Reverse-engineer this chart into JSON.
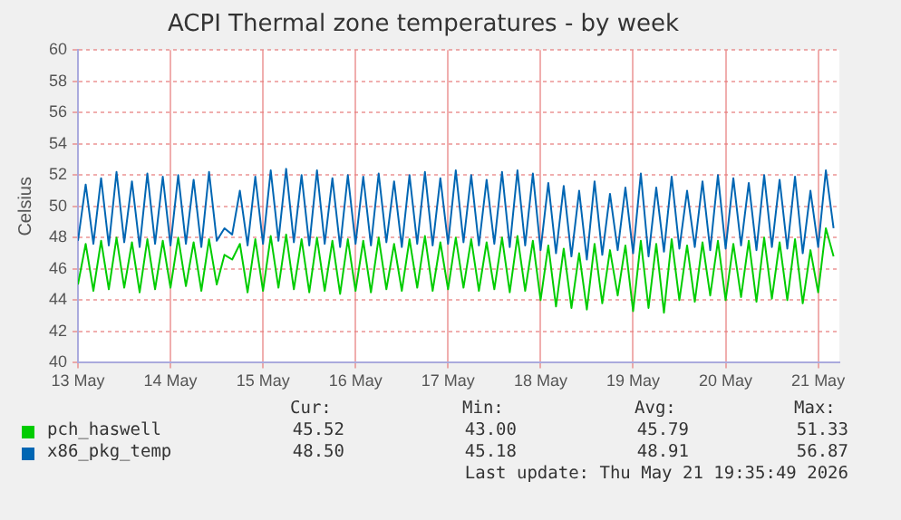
{
  "chart_data": {
    "type": "line",
    "title": "ACPI Thermal zone temperatures - by week",
    "ylabel": "Celsius",
    "x": [
      "2026-05-13T00:00",
      "2026-05-13T02:00",
      "2026-05-13T04:00",
      "2026-05-13T06:00",
      "2026-05-13T08:00",
      "2026-05-13T10:00",
      "2026-05-13T12:00",
      "2026-05-13T14:00",
      "2026-05-13T16:00",
      "2026-05-13T18:00",
      "2026-05-13T20:00",
      "2026-05-13T22:00",
      "2026-05-14T00:00",
      "2026-05-14T02:00",
      "2026-05-14T04:00",
      "2026-05-14T06:00",
      "2026-05-14T08:00",
      "2026-05-14T10:00",
      "2026-05-14T12:00",
      "2026-05-14T14:00",
      "2026-05-14T16:00",
      "2026-05-14T18:00",
      "2026-05-14T20:00",
      "2026-05-14T22:00",
      "2026-05-15T00:00",
      "2026-05-15T02:00",
      "2026-05-15T04:00",
      "2026-05-15T06:00",
      "2026-05-15T08:00",
      "2026-05-15T10:00",
      "2026-05-15T12:00",
      "2026-05-15T14:00",
      "2026-05-15T16:00",
      "2026-05-15T18:00",
      "2026-05-15T20:00",
      "2026-05-15T22:00",
      "2026-05-16T00:00",
      "2026-05-16T02:00",
      "2026-05-16T04:00",
      "2026-05-16T06:00",
      "2026-05-16T08:00",
      "2026-05-16T10:00",
      "2026-05-16T12:00",
      "2026-05-16T14:00",
      "2026-05-16T16:00",
      "2026-05-16T18:00",
      "2026-05-16T20:00",
      "2026-05-16T22:00",
      "2026-05-17T00:00",
      "2026-05-17T02:00",
      "2026-05-17T04:00",
      "2026-05-17T06:00",
      "2026-05-17T08:00",
      "2026-05-17T10:00",
      "2026-05-17T12:00",
      "2026-05-17T14:00",
      "2026-05-17T16:00",
      "2026-05-17T18:00",
      "2026-05-17T20:00",
      "2026-05-17T22:00",
      "2026-05-18T00:00",
      "2026-05-18T02:00",
      "2026-05-18T04:00",
      "2026-05-18T06:00",
      "2026-05-18T08:00",
      "2026-05-18T10:00",
      "2026-05-18T12:00",
      "2026-05-18T14:00",
      "2026-05-18T16:00",
      "2026-05-18T18:00",
      "2026-05-18T20:00",
      "2026-05-18T22:00",
      "2026-05-19T00:00",
      "2026-05-19T02:00",
      "2026-05-19T04:00",
      "2026-05-19T06:00",
      "2026-05-19T08:00",
      "2026-05-19T10:00",
      "2026-05-19T12:00",
      "2026-05-19T14:00",
      "2026-05-19T16:00",
      "2026-05-19T18:00",
      "2026-05-19T20:00",
      "2026-05-19T22:00",
      "2026-05-20T00:00",
      "2026-05-20T02:00",
      "2026-05-20T04:00",
      "2026-05-20T06:00",
      "2026-05-20T08:00",
      "2026-05-20T10:00",
      "2026-05-20T12:00",
      "2026-05-20T14:00",
      "2026-05-20T16:00",
      "2026-05-20T18:00",
      "2026-05-20T20:00",
      "2026-05-20T22:00",
      "2026-05-21T00:00",
      "2026-05-21T02:00",
      "2026-05-21T04:00"
    ],
    "series": [
      {
        "name": "pch_haswell",
        "color": "#00cc00",
        "values": [
          45.0,
          47.6,
          44.6,
          47.8,
          44.7,
          48.0,
          44.8,
          47.7,
          44.5,
          47.9,
          44.7,
          47.8,
          44.8,
          48.0,
          44.9,
          47.7,
          44.6,
          47.9,
          45.0,
          46.9,
          46.6,
          47.6,
          44.5,
          47.9,
          44.6,
          48.1,
          44.8,
          48.2,
          44.7,
          47.9,
          44.5,
          48.0,
          44.6,
          47.8,
          44.4,
          47.9,
          44.6,
          47.8,
          44.5,
          48.0,
          44.7,
          47.6,
          44.6,
          47.9,
          44.8,
          48.1,
          44.6,
          47.7,
          44.7,
          48.0,
          44.8,
          47.9,
          44.6,
          47.7,
          44.7,
          48.0,
          44.5,
          48.1,
          44.6,
          47.8,
          44.0,
          47.5,
          43.6,
          47.3,
          43.5,
          47.0,
          43.4,
          47.6,
          43.8,
          47.2,
          44.3,
          47.5,
          43.3,
          47.8,
          43.5,
          47.6,
          43.2,
          47.9,
          44.0,
          47.5,
          43.9,
          47.7,
          44.3,
          47.8,
          44.0,
          47.6,
          44.2,
          47.8,
          43.9,
          48.0,
          44.1,
          47.7,
          44.0,
          47.9,
          43.8,
          47.2,
          44.5,
          48.6,
          46.8
        ]
      },
      {
        "name": "x86_pkg_temp",
        "color": "#0066b3",
        "values": [
          47.8,
          51.4,
          47.6,
          51.8,
          47.5,
          52.2,
          47.7,
          51.6,
          47.4,
          52.1,
          47.6,
          51.9,
          47.5,
          52.0,
          47.6,
          51.7,
          47.4,
          52.2,
          47.8,
          48.6,
          48.2,
          51.0,
          47.5,
          51.9,
          47.6,
          52.3,
          47.8,
          52.4,
          47.7,
          52.0,
          47.5,
          52.3,
          47.6,
          51.8,
          47.4,
          52.0,
          47.6,
          51.9,
          47.5,
          52.1,
          47.7,
          51.6,
          47.4,
          52.0,
          47.6,
          52.2,
          47.5,
          51.8,
          47.6,
          52.3,
          47.7,
          52.0,
          47.5,
          51.7,
          47.6,
          52.2,
          47.4,
          52.3,
          47.5,
          52.1,
          47.2,
          51.5,
          47.0,
          51.3,
          46.8,
          51.0,
          46.6,
          51.6,
          46.9,
          50.8,
          47.2,
          51.2,
          47.0,
          52.1,
          46.8,
          51.2,
          47.1,
          51.9,
          47.3,
          51.0,
          47.4,
          51.6,
          47.2,
          52.0,
          47.3,
          51.8,
          47.5,
          51.5,
          47.2,
          52.0,
          47.4,
          51.7,
          47.3,
          51.9,
          47.0,
          51.0,
          47.4,
          52.3,
          48.6
        ]
      }
    ],
    "xlim": [
      "2026-05-13T00:00",
      "2026-05-21T05:30"
    ],
    "xticks": [
      {
        "value": "2026-05-13T00:00",
        "label": "13 May"
      },
      {
        "value": "2026-05-14T00:00",
        "label": "14 May"
      },
      {
        "value": "2026-05-15T00:00",
        "label": "15 May"
      },
      {
        "value": "2026-05-16T00:00",
        "label": "16 May"
      },
      {
        "value": "2026-05-17T00:00",
        "label": "17 May"
      },
      {
        "value": "2026-05-18T00:00",
        "label": "18 May"
      },
      {
        "value": "2026-05-19T00:00",
        "label": "19 May"
      },
      {
        "value": "2026-05-20T00:00",
        "label": "20 May"
      },
      {
        "value": "2026-05-21T00:00",
        "label": "21 May"
      }
    ],
    "ylim": [
      40,
      60
    ],
    "yticks": [
      40,
      42,
      44,
      46,
      48,
      50,
      52,
      54,
      56,
      58,
      60
    ],
    "grid": true,
    "legend": "bottom",
    "marker": "none",
    "line_style": "solid",
    "annotations": [
      "Cur:",
      "Min:",
      "Avg:",
      "Max:",
      "45.52",
      "43.00",
      "45.79",
      "51.33",
      "48.50",
      "45.18",
      "48.91",
      "56.87",
      "Last update: Thu May 21 19:35:49 2026"
    ]
  }
}
